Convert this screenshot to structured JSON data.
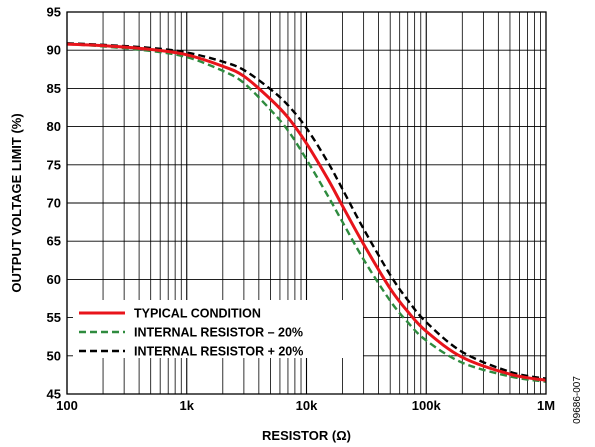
{
  "chart_data": {
    "type": "line",
    "xlabel": "RESISTOR (Ω)",
    "ylabel": "OUTPUT VOLTAGE LIMIT (%)",
    "x_scale": "log",
    "xlim": [
      100,
      1000000
    ],
    "ylim": [
      45,
      95
    ],
    "grid": true,
    "legend_position": "bottom-left",
    "x_ticks": [
      {
        "value": 100,
        "label": "100"
      },
      {
        "value": 1000,
        "label": "1k"
      },
      {
        "value": 10000,
        "label": "10k"
      },
      {
        "value": 100000,
        "label": "100k"
      },
      {
        "value": 1000000,
        "label": "1M"
      }
    ],
    "y_ticks": [
      45,
      50,
      55,
      60,
      65,
      70,
      75,
      80,
      85,
      90,
      95
    ],
    "x": [
      100,
      200,
      500,
      1000,
      2000,
      3000,
      5000,
      7000,
      10000,
      15000,
      20000,
      30000,
      50000,
      70000,
      100000,
      200000,
      500000,
      1000000
    ],
    "series": [
      {
        "name": "TYPICAL CONDITION",
        "color": "#e8141b",
        "dash": "solid",
        "values": [
          90.8,
          90.6,
          90.1,
          89.4,
          87.9,
          86.6,
          83.6,
          81.2,
          77.8,
          73.2,
          69.6,
          64.6,
          58.8,
          55.8,
          53.2,
          49.8,
          47.6,
          46.8
        ]
      },
      {
        "name": "INTERNAL RESISTOR – 20%",
        "color": "#2e8b3e",
        "dash": "dashed",
        "values": [
          90.8,
          90.5,
          89.9,
          89.1,
          87.3,
          85.7,
          82.2,
          79.5,
          75.7,
          71.0,
          67.5,
          62.6,
          57.2,
          54.4,
          52.0,
          49.1,
          47.3,
          46.6
        ]
      },
      {
        "name": "INTERNAL RESISTOR + 20%",
        "color": "#000000",
        "dash": "dashed",
        "values": [
          90.9,
          90.7,
          90.3,
          89.7,
          88.5,
          87.4,
          84.9,
          82.8,
          79.8,
          75.4,
          71.8,
          66.6,
          60.6,
          57.3,
          54.4,
          50.5,
          47.9,
          47.0
        ]
      }
    ]
  },
  "figure_code": "09686-007"
}
